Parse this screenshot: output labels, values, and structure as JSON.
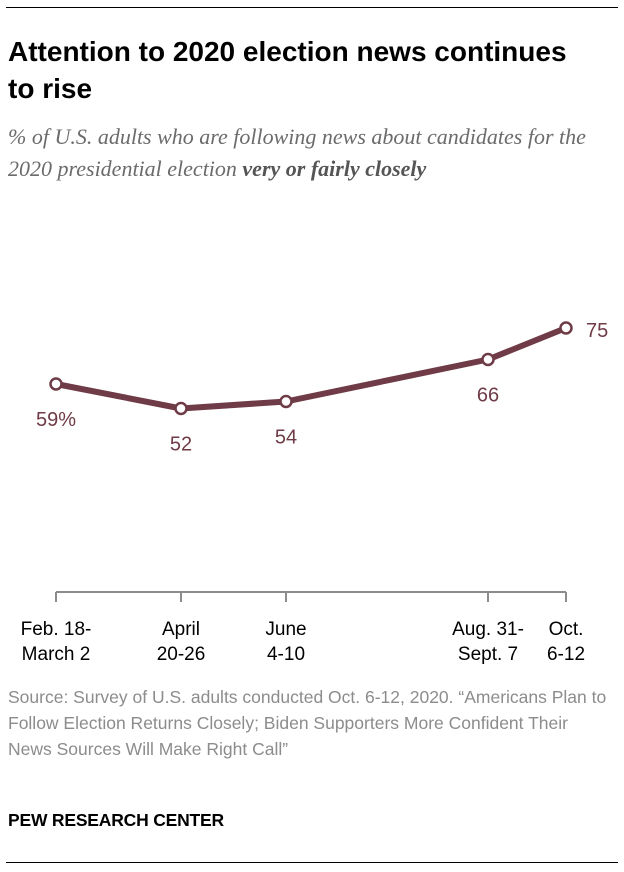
{
  "title": "Attention to 2020 election news continues to rise",
  "subtitle": {
    "lead": "% of U.S. adults who are following news about candidates for the 2020 presidential election ",
    "emphasis": "very or fairly closely"
  },
  "chart_data": {
    "type": "line",
    "title": "Attention to 2020 election news continues to rise",
    "xlabel": "",
    "ylabel": "",
    "ylim": [
      0,
      100
    ],
    "grid": false,
    "legend": "none",
    "categories": [
      [
        "Feb. 18-",
        "March 2"
      ],
      [
        "April",
        "20-26"
      ],
      [
        "June",
        "4-10"
      ],
      [
        "Aug. 31-",
        "Sept. 7"
      ],
      [
        "Oct.",
        "6-12"
      ]
    ],
    "series": [
      {
        "name": "Following election news very or fairly closely",
        "values": [
          59,
          52,
          54,
          66,
          75
        ],
        "labels": [
          "59%",
          "52",
          "54",
          "66",
          "75"
        ],
        "color": "#6e3b46"
      }
    ]
  },
  "colors": {
    "line": "#6e3b46",
    "label": "#6e3b46",
    "axis": "#8c8c8c"
  },
  "source": "Source: Survey of U.S. adults conducted Oct. 6-12, 2020. “Americans Plan to Follow Election Returns Closely; Biden Supporters More Confident Their News Sources Will Make Right Call”",
  "brand": "PEW RESEARCH CENTER"
}
